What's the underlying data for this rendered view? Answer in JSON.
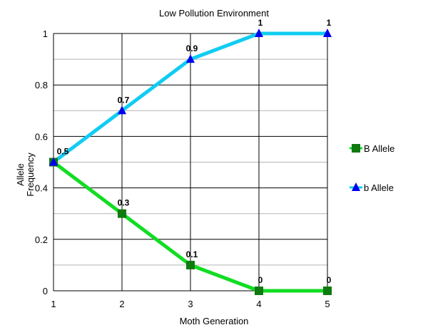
{
  "chart_data": {
    "type": "line",
    "title": "Low Pollution Environment",
    "xlabel": "Moth Generation",
    "ylabel": "Allele Frequency",
    "x": [
      1,
      2,
      3,
      4,
      5
    ],
    "xlim": [
      1,
      5
    ],
    "ylim": [
      0,
      1
    ],
    "yticks": [
      0,
      0.2,
      0.4,
      0.6,
      0.8,
      1
    ],
    "xtick_labels": [
      "1",
      "2",
      "3",
      "4",
      "5"
    ],
    "ytick_labels": [
      "0",
      "0.2",
      "0.4",
      "0.6",
      "0.8",
      "1"
    ],
    "grid": true,
    "legend_position": "right",
    "series": [
      {
        "name": "B Allele",
        "values": [
          0.5,
          0.3,
          0.1,
          0,
          0
        ],
        "labels": [
          "0.5",
          "0.3",
          "0.1",
          "0",
          "0"
        ],
        "line_color": "#11dd22",
        "marker": "square",
        "marker_color": "#0f7a0f"
      },
      {
        "name": "b Allele",
        "values": [
          0.5,
          0.7,
          0.9,
          1,
          1
        ],
        "labels": [
          "",
          "0.7",
          "0.9",
          "1",
          "1"
        ],
        "line_color": "#11ccf2",
        "marker": "triangle",
        "marker_color": "#0000ee"
      }
    ]
  }
}
